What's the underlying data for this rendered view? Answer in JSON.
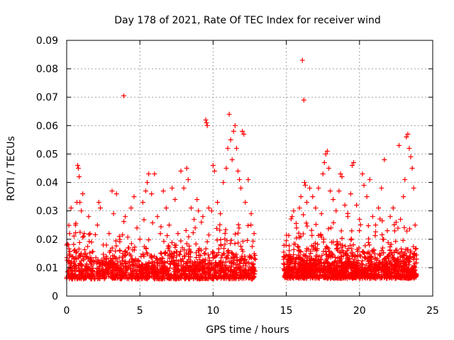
{
  "chart_data": {
    "type": "scatter",
    "title": "Day 178 of 2021, Rate Of TEC Index for receiver wind",
    "xlabel": "GPS time / hours",
    "ylabel": "ROTI / TECUs",
    "xlim": [
      0,
      25
    ],
    "ylim": [
      0,
      0.09
    ],
    "xticks": [
      0,
      5,
      10,
      15,
      20,
      25
    ],
    "xtick_labels": [
      "0",
      "5",
      "10",
      "15",
      "20",
      "25"
    ],
    "yticks": [
      0,
      0.01,
      0.02,
      0.03,
      0.04,
      0.05,
      0.06,
      0.07,
      0.08,
      0.09
    ],
    "ytick_labels": [
      "0",
      "0.01",
      "0.02",
      "0.03",
      "0.04",
      "0.05",
      "0.06",
      "0.07",
      "0.08",
      "0.09"
    ],
    "grid": true,
    "marker": "+",
    "color": "#ff0000",
    "series": [
      {
        "points": [
          [
            0.1,
            0.018
          ],
          [
            0.2,
            0.022
          ],
          [
            0.3,
            0.031
          ],
          [
            0.35,
            0.012
          ],
          [
            0.4,
            0.009
          ],
          [
            0.5,
            0.016
          ],
          [
            0.6,
            0.025
          ],
          [
            0.7,
            0.033
          ],
          [
            0.75,
            0.046
          ],
          [
            0.8,
            0.045
          ],
          [
            0.85,
            0.042
          ],
          [
            0.9,
            0.033
          ],
          [
            1.0,
            0.03
          ],
          [
            1.1,
            0.036
          ],
          [
            1.2,
            0.022
          ],
          [
            1.3,
            0.015
          ],
          [
            1.5,
            0.028
          ],
          [
            1.7,
            0.019
          ],
          [
            1.9,
            0.012
          ],
          [
            2.1,
            0.025
          ],
          [
            2.2,
            0.033
          ],
          [
            2.3,
            0.031
          ],
          [
            2.5,
            0.018
          ],
          [
            2.7,
            0.014
          ],
          [
            2.9,
            0.022
          ],
          [
            3.1,
            0.037
          ],
          [
            3.2,
            0.029
          ],
          [
            3.4,
            0.036
          ],
          [
            3.6,
            0.021
          ],
          [
            3.9,
            0.0705
          ],
          [
            4.0,
            0.028
          ],
          [
            4.2,
            0.017
          ],
          [
            4.4,
            0.031
          ],
          [
            4.6,
            0.035
          ],
          [
            4.8,
            0.024
          ],
          [
            5.0,
            0.02
          ],
          [
            5.2,
            0.033
          ],
          [
            5.4,
            0.037
          ],
          [
            5.5,
            0.04
          ],
          [
            5.6,
            0.043
          ],
          [
            5.8,
            0.036
          ],
          [
            6.0,
            0.043
          ],
          [
            6.2,
            0.028
          ],
          [
            6.4,
            0.022
          ],
          [
            6.6,
            0.037
          ],
          [
            6.8,
            0.031
          ],
          [
            7.0,
            0.025
          ],
          [
            7.2,
            0.038
          ],
          [
            7.4,
            0.034
          ],
          [
            7.6,
            0.022
          ],
          [
            7.8,
            0.044
          ],
          [
            8.0,
            0.038
          ],
          [
            8.2,
            0.045
          ],
          [
            8.3,
            0.041
          ],
          [
            8.5,
            0.031
          ],
          [
            8.7,
            0.027
          ],
          [
            8.9,
            0.034
          ],
          [
            9.0,
            0.03
          ],
          [
            9.2,
            0.026
          ],
          [
            9.3,
            0.028
          ],
          [
            9.5,
            0.062
          ],
          [
            9.55,
            0.061
          ],
          [
            9.6,
            0.06
          ],
          [
            9.7,
            0.031
          ],
          [
            9.9,
            0.03
          ],
          [
            10.0,
            0.046
          ],
          [
            10.1,
            0.044
          ],
          [
            10.3,
            0.033
          ],
          [
            10.5,
            0.029
          ],
          [
            10.7,
            0.04
          ],
          [
            10.9,
            0.045
          ],
          [
            11.0,
            0.052
          ],
          [
            11.1,
            0.064
          ],
          [
            11.2,
            0.055
          ],
          [
            11.3,
            0.048
          ],
          [
            11.4,
            0.058
          ],
          [
            11.5,
            0.06
          ],
          [
            11.6,
            0.052
          ],
          [
            11.7,
            0.044
          ],
          [
            11.8,
            0.041
          ],
          [
            11.9,
            0.038
          ],
          [
            12.0,
            0.058
          ],
          [
            12.1,
            0.057
          ],
          [
            12.2,
            0.033
          ],
          [
            12.4,
            0.041
          ],
          [
            12.6,
            0.029
          ],
          [
            12.8,
            0.022
          ],
          [
            15.0,
            0.014
          ],
          [
            15.2,
            0.016
          ],
          [
            15.4,
            0.028
          ],
          [
            15.5,
            0.03
          ],
          [
            15.7,
            0.024
          ],
          [
            15.9,
            0.031
          ],
          [
            16.0,
            0.035
          ],
          [
            16.1,
            0.083
          ],
          [
            16.2,
            0.069
          ],
          [
            16.25,
            0.04
          ],
          [
            16.3,
            0.039
          ],
          [
            16.4,
            0.033
          ],
          [
            16.6,
            0.038
          ],
          [
            16.8,
            0.035
          ],
          [
            17.0,
            0.031
          ],
          [
            17.2,
            0.038
          ],
          [
            17.4,
            0.029
          ],
          [
            17.5,
            0.043
          ],
          [
            17.6,
            0.047
          ],
          [
            17.7,
            0.05
          ],
          [
            17.8,
            0.051
          ],
          [
            17.9,
            0.045
          ],
          [
            18.0,
            0.037
          ],
          [
            18.2,
            0.034
          ],
          [
            18.4,
            0.03
          ],
          [
            18.6,
            0.037
          ],
          [
            18.7,
            0.043
          ],
          [
            18.8,
            0.042
          ],
          [
            19.0,
            0.032
          ],
          [
            19.2,
            0.028
          ],
          [
            19.4,
            0.036
          ],
          [
            19.5,
            0.046
          ],
          [
            19.6,
            0.047
          ],
          [
            19.8,
            0.032
          ],
          [
            20.0,
            0.027
          ],
          [
            20.2,
            0.043
          ],
          [
            20.3,
            0.039
          ],
          [
            20.5,
            0.035
          ],
          [
            20.7,
            0.041
          ],
          [
            20.9,
            0.028
          ],
          [
            21.1,
            0.025
          ],
          [
            21.3,
            0.031
          ],
          [
            21.5,
            0.038
          ],
          [
            21.7,
            0.048
          ],
          [
            21.9,
            0.023
          ],
          [
            22.1,
            0.028
          ],
          [
            22.3,
            0.031
          ],
          [
            22.5,
            0.026
          ],
          [
            22.7,
            0.053
          ],
          [
            22.8,
            0.027
          ],
          [
            23.0,
            0.035
          ],
          [
            23.1,
            0.041
          ],
          [
            23.2,
            0.056
          ],
          [
            23.3,
            0.057
          ],
          [
            23.4,
            0.052
          ],
          [
            23.5,
            0.049
          ],
          [
            23.6,
            0.045
          ],
          [
            23.7,
            0.038
          ],
          [
            23.8,
            0.025
          ]
        ],
        "bands": [
          {
            "x": [
              0.0,
              12.9
            ],
            "y": [
              0.002,
              0.025
            ]
          },
          {
            "x": [
              14.8,
              23.9
            ],
            "y": [
              0.002,
              0.026
            ]
          }
        ]
      }
    ]
  }
}
